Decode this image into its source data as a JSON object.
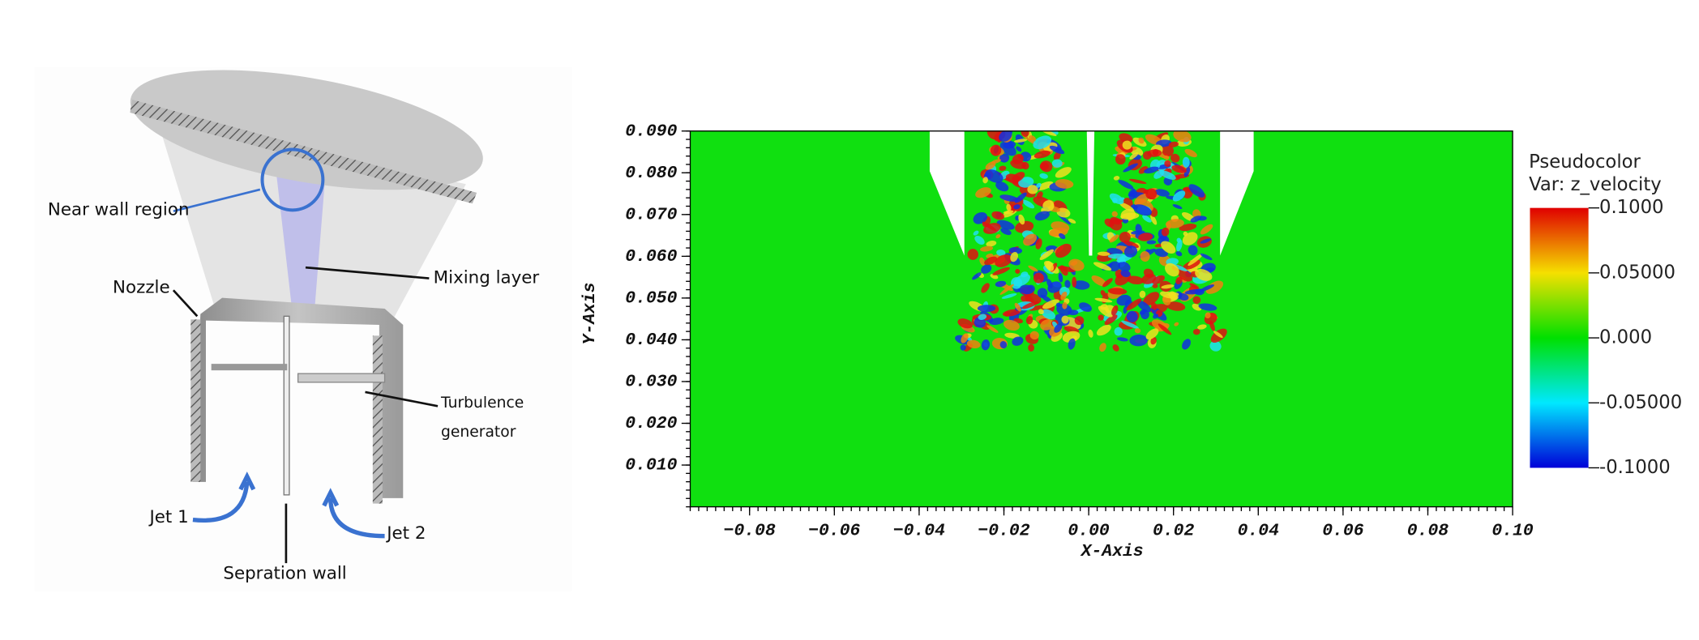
{
  "diagram": {
    "labels": [
      "Near wall region",
      "Mixing layer",
      "Nozzle",
      "Turbulence",
      "generator",
      "Jet 1",
      "Jet 2",
      "Sepration wall"
    ]
  },
  "plot": {
    "type": "pseudocolor",
    "x_label": "X-Axis",
    "y_label": "Y-Axis",
    "xlim": [
      -0.094,
      0.1
    ],
    "ylim": [
      0,
      0.09
    ],
    "xticks": [
      {
        "value": -0.08,
        "label": "−0.08"
      },
      {
        "value": -0.06,
        "label": "−0.06"
      },
      {
        "value": -0.04,
        "label": "−0.04"
      },
      {
        "value": -0.02,
        "label": "−0.02"
      },
      {
        "value": 0,
        "label": "0.00"
      },
      {
        "value": 0.02,
        "label": "0.02"
      },
      {
        "value": 0.04,
        "label": "0.04"
      },
      {
        "value": 0.06,
        "label": "0.06"
      },
      {
        "value": 0.08,
        "label": "0.08"
      },
      {
        "value": 0.1,
        "label": "0.10"
      }
    ],
    "yticks": [
      {
        "value": 0.01,
        "label": "0.010"
      },
      {
        "value": 0.02,
        "label": "0.020"
      },
      {
        "value": 0.03,
        "label": "0.030"
      },
      {
        "value": 0.04,
        "label": "0.040"
      },
      {
        "value": 0.05,
        "label": "0.050"
      },
      {
        "value": 0.06,
        "label": "0.060"
      },
      {
        "value": 0.07,
        "label": "0.070"
      },
      {
        "value": 0.08,
        "label": "0.080"
      },
      {
        "value": 0.09,
        "label": "0.090"
      }
    ],
    "legend": {
      "title": "Pseudocolor",
      "variable": "Var: z_velocity",
      "lim": [
        -0.1,
        0.1
      ],
      "ticks": [
        {
          "value": 0.1,
          "label": "0.1000"
        },
        {
          "value": 0.05,
          "label": "0.05000"
        },
        {
          "value": 0,
          "label": "0.000"
        },
        {
          "value": -0.05,
          "label": "-0.05000"
        },
        {
          "value": -0.1,
          "label": "-0.1000"
        }
      ]
    }
  }
}
